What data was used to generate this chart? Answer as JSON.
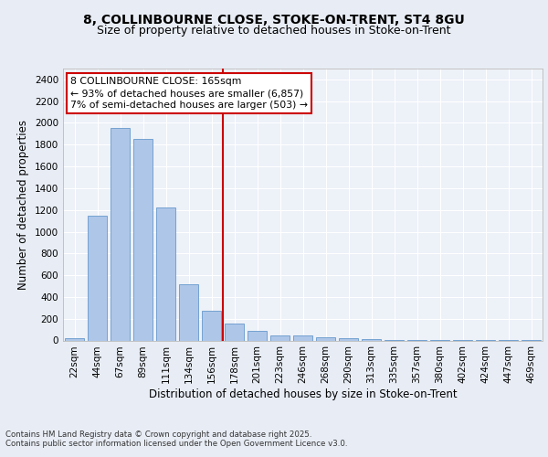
{
  "title1": "8, COLLINBOURNE CLOSE, STOKE-ON-TRENT, ST4 8GU",
  "title2": "Size of property relative to detached houses in Stoke-on-Trent",
  "xlabel": "Distribution of detached houses by size in Stoke-on-Trent",
  "ylabel": "Number of detached properties",
  "categories": [
    "22sqm",
    "44sqm",
    "67sqm",
    "89sqm",
    "111sqm",
    "134sqm",
    "156sqm",
    "178sqm",
    "201sqm",
    "223sqm",
    "246sqm",
    "268sqm",
    "290sqm",
    "313sqm",
    "335sqm",
    "357sqm",
    "380sqm",
    "402sqm",
    "424sqm",
    "447sqm",
    "469sqm"
  ],
  "values": [
    25,
    1150,
    1950,
    1850,
    1225,
    520,
    275,
    155,
    90,
    50,
    45,
    30,
    20,
    10,
    5,
    3,
    2,
    2,
    1,
    1,
    1
  ],
  "bar_color": "#aec6e8",
  "bar_edge_color": "#6699cc",
  "vline_x": 6.5,
  "vline_color": "#cc0000",
  "annotation_text": "8 COLLINBOURNE CLOSE: 165sqm\n← 93% of detached houses are smaller (6,857)\n7% of semi-detached houses are larger (503) →",
  "annotation_box_color": "#cc0000",
  "ylim": [
    0,
    2500
  ],
  "yticks": [
    0,
    200,
    400,
    600,
    800,
    1000,
    1200,
    1400,
    1600,
    1800,
    2000,
    2200,
    2400
  ],
  "footer1": "Contains HM Land Registry data © Crown copyright and database right 2025.",
  "footer2": "Contains public sector information licensed under the Open Government Licence v3.0.",
  "bg_color": "#e8edf5",
  "plot_bg_color": "#edf1f8",
  "grid_color": "#ffffff",
  "title_fontsize": 10,
  "subtitle_fontsize": 9,
  "tick_fontsize": 7.5,
  "ylabel_fontsize": 8.5,
  "xlabel_fontsize": 8.5,
  "footer_fontsize": 6.2
}
